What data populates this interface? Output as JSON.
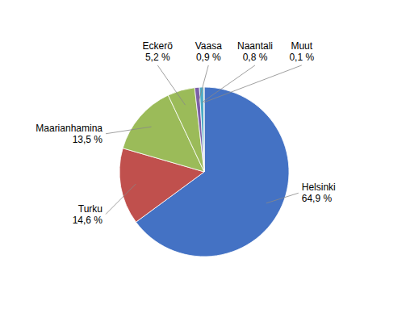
{
  "chart_data": {
    "type": "pie",
    "categories": [
      "Helsinki",
      "Turku",
      "Maarianhamina",
      "Eckerö",
      "Vaasa",
      "Naantali",
      "Muut"
    ],
    "values": [
      64.9,
      14.6,
      13.5,
      5.2,
      0.9,
      0.8,
      0.1
    ],
    "value_labels": [
      "64,9 %",
      "14,6 %",
      "13,5 %",
      "5,2 %",
      "0,9 %",
      "0,8 %",
      "0,1 %"
    ],
    "colors": [
      "#4472C4",
      "#C0504D",
      "#9BBB59",
      "#9BBB59",
      "#7B5EA7",
      "#4BACC6",
      "#E87722"
    ],
    "data_labels": true
  }
}
